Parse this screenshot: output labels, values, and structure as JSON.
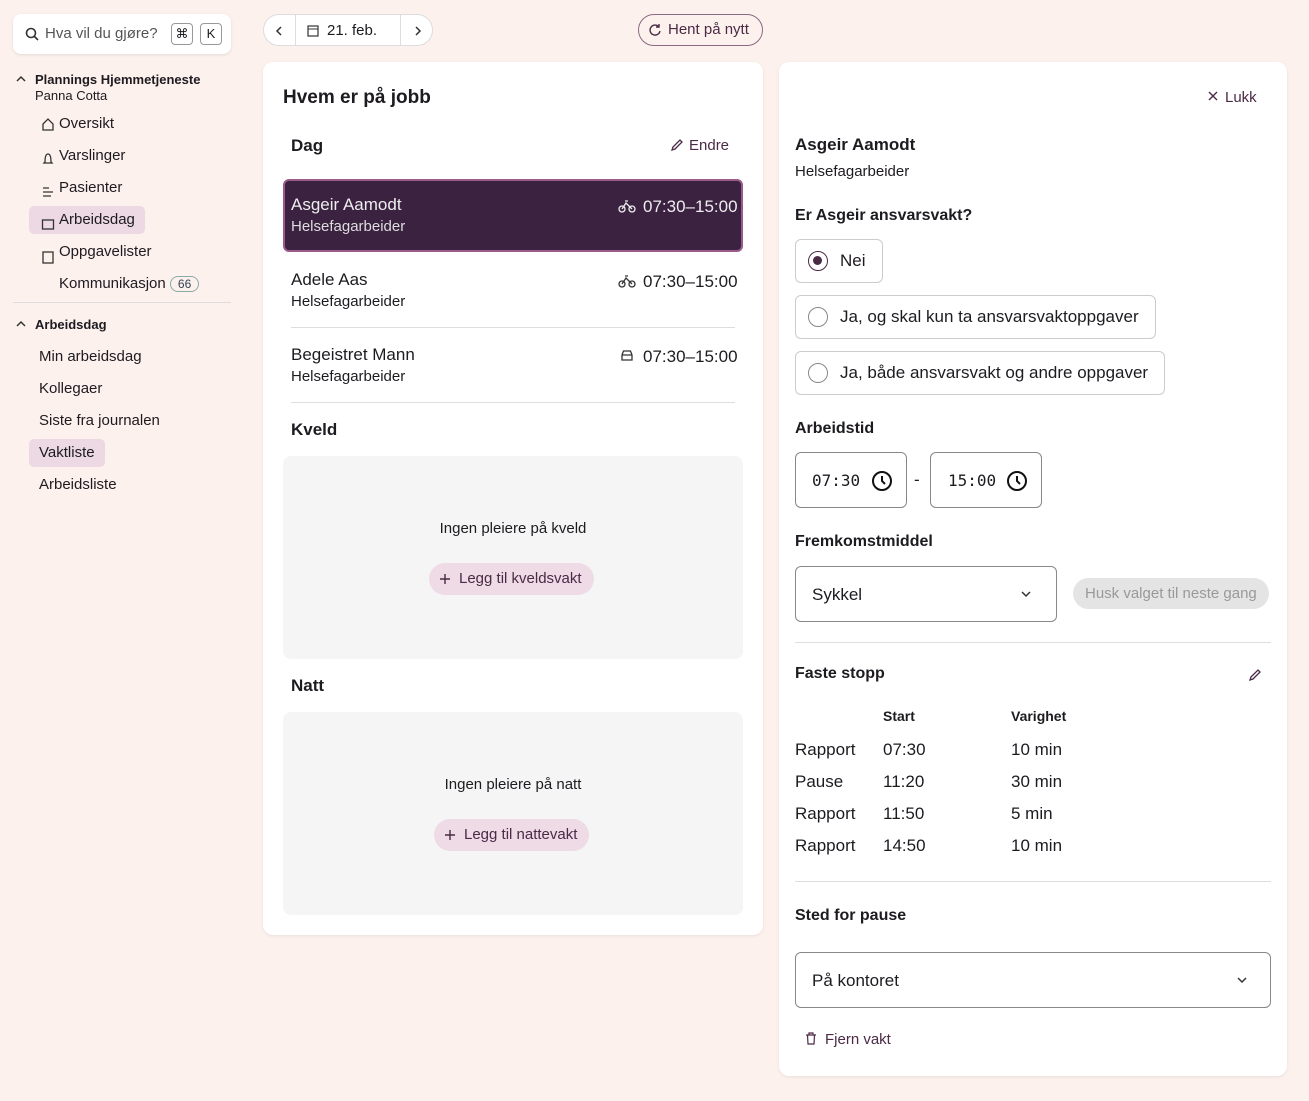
{
  "search": {
    "placeholder": "Hva vil du gjøre?",
    "keys": [
      "⌘",
      "K"
    ]
  },
  "nav": {
    "org": "Plannings Hjemmetjeneste",
    "user": "Panna Cotta",
    "items": [
      "Oversikt",
      "Varslinger",
      "Pasienter",
      "Arbeidsdag",
      "Oppgavelister",
      "Kommunikasjon"
    ],
    "badge": "66",
    "section": "Arbeidsdag",
    "sub_items": [
      "Min arbeidsdag",
      "Kollegaer",
      "Siste fra journalen",
      "Vaktliste",
      "Arbeidsliste"
    ]
  },
  "toolbar": {
    "date": "21. feb.",
    "reload": "Hent på nytt"
  },
  "shifts": {
    "title": "Hvem er på jobb",
    "day": {
      "heading": "Dag",
      "edit": "Endre",
      "staff": [
        {
          "name": "Asgeir Aamodt",
          "role": "Helsefagarbeider",
          "time": "07:30–15:00"
        },
        {
          "name": "Adele Aas",
          "role": "Helsefagarbeider",
          "time": "07:30–15:00"
        },
        {
          "name": "Begeistret Mann",
          "role": "Helsefagarbeider",
          "time": "07:30–15:00"
        }
      ]
    },
    "evening": {
      "heading": "Kveld",
      "empty": "Ingen pleiere på kveld",
      "add": "Legg til kveldsvakt"
    },
    "night": {
      "heading": "Natt",
      "empty": "Ingen pleiere på natt",
      "add": "Legg til nattevakt"
    }
  },
  "details": {
    "close": "Lukk",
    "name": "Asgeir Aamodt",
    "role": "Helsefagarbeider",
    "question": "Er Asgeir ansvarsvakt?",
    "options": [
      "Nei",
      "Ja, og skal kun ta ansvarsvaktoppgaver",
      "Ja, både ansvarsvakt og andre oppgaver"
    ],
    "worktime": {
      "label": "Arbeidstid",
      "start": "07:30",
      "separator": "-",
      "end": "15:00"
    },
    "transport": {
      "label": "Fremkomstmiddel",
      "value": "Sykkel",
      "remember": "Husk valget til neste gang"
    },
    "stops": {
      "title": "Faste stopp",
      "columns": [
        "Start",
        "Varighet"
      ],
      "rows": [
        [
          "Rapport",
          "07:30",
          "10 min"
        ],
        [
          "Pause",
          "11:20",
          "30 min"
        ],
        [
          "Rapport",
          "11:50",
          "5 min"
        ],
        [
          "Rapport",
          "14:50",
          "10 min"
        ]
      ]
    },
    "break_place": {
      "label": "Sted for pause",
      "value": "På kontoret"
    },
    "remove": "Fjern vakt"
  }
}
